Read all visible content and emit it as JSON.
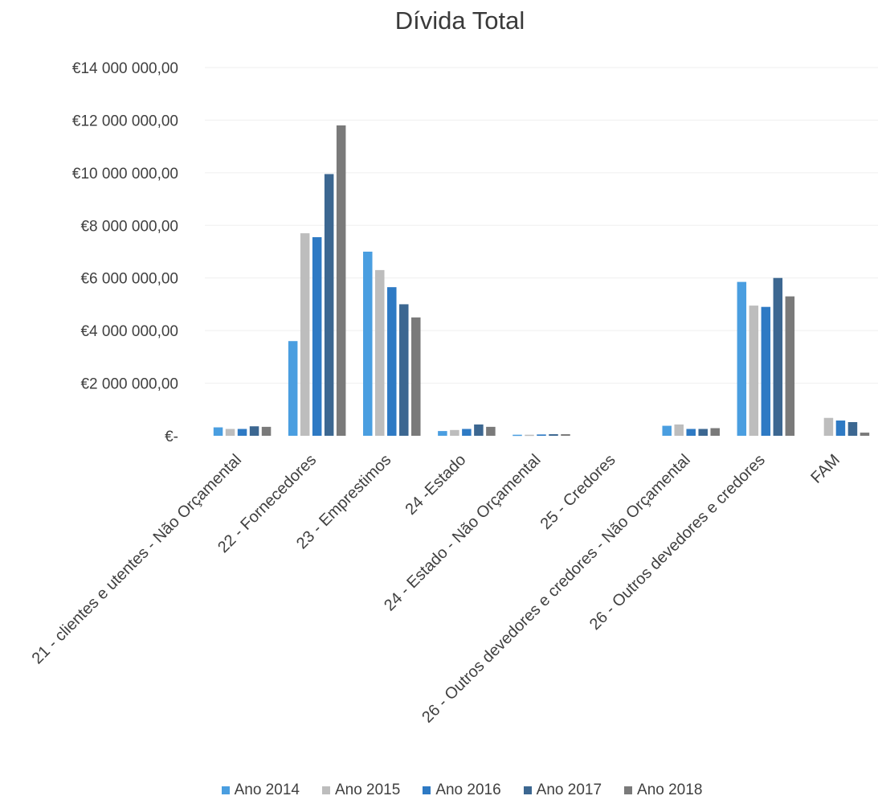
{
  "chart_data": {
    "type": "bar",
    "title": "Dívida Total",
    "categories": [
      "21 - clientes e utentes - Não Orçamental",
      "22 - Fornecedores",
      "23 - Emprestimos",
      "24 -Estado",
      "24 - Estado - Não Orçamental",
      "25 - Credores",
      "26 - Outros devedores e credores - Não Orçamental",
      "26 - Outros devedores e credores",
      "FAM"
    ],
    "series": [
      {
        "name": "Ano 2014",
        "color": "#4a9ee0",
        "values": [
          320000,
          3600000,
          7000000,
          180000,
          40000,
          0,
          380000,
          5850000,
          0
        ]
      },
      {
        "name": "Ano 2015",
        "color": "#bdbdbd",
        "values": [
          260000,
          7700000,
          6300000,
          220000,
          40000,
          0,
          430000,
          4950000,
          680000
        ]
      },
      {
        "name": "Ano 2016",
        "color": "#2e7ac4",
        "values": [
          260000,
          7550000,
          5650000,
          260000,
          50000,
          0,
          260000,
          4900000,
          580000
        ]
      },
      {
        "name": "Ano 2017",
        "color": "#3c6791",
        "values": [
          360000,
          9950000,
          5000000,
          430000,
          60000,
          0,
          260000,
          6000000,
          520000
        ]
      },
      {
        "name": "Ano 2018",
        "color": "#7a7a7a",
        "values": [
          340000,
          11800000,
          4500000,
          340000,
          60000,
          0,
          290000,
          5300000,
          120000
        ]
      }
    ],
    "yticks": [
      "€-",
      "€2 000 000,00",
      "€4 000 000,00",
      "€6 000 000,00",
      "€8 000 000,00",
      "€10 000 000,00",
      "€12 000 000,00",
      "€14 000 000,00"
    ],
    "ylim": [
      0,
      14000000
    ],
    "grid": true,
    "legend_position": "bottom"
  }
}
